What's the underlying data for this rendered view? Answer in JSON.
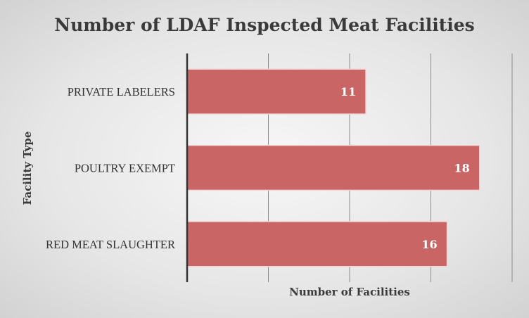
{
  "chart_data": {
    "type": "bar",
    "orientation": "horizontal",
    "title": "Number of LDAF Inspected Meat Facilities",
    "xlabel": "Number of Facilities",
    "ylabel": "Facility Type",
    "categories": [
      "PRIVATE LABELERS",
      "POULTRY EXEMPT",
      "RED MEAT SLAUGHTER"
    ],
    "values": [
      11,
      18,
      16
    ],
    "data_labels": [
      "11",
      "18",
      "16"
    ],
    "xlim": [
      0,
      20
    ],
    "grid": true,
    "legend": "none",
    "colors": {
      "bar": "#c96565",
      "bar_border": "#f3dada",
      "axis": "#333333",
      "gridline": "#8c8c8c"
    }
  }
}
